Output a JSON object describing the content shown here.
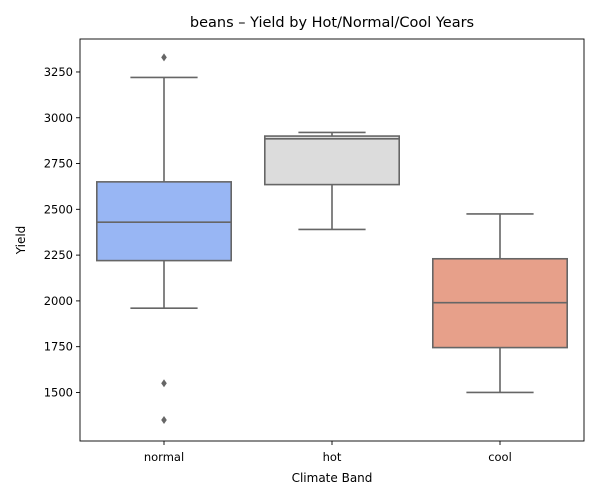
{
  "chart_data": {
    "type": "box",
    "title": "beans – Yield by Hot/Normal/Cool Years",
    "xlabel": "Climate Band",
    "ylabel": "Yield",
    "ylim": [
      1235,
      3430
    ],
    "yticks": [
      1500,
      1750,
      2000,
      2250,
      2500,
      2750,
      3000,
      3250
    ],
    "grid": false,
    "legend": "none",
    "categories": [
      "normal",
      "hot",
      "cool"
    ],
    "boxes": [
      {
        "category": "normal",
        "color": "#98b6f4",
        "whisker_low": 1960,
        "q1": 2220,
        "median": 2430,
        "q3": 2650,
        "whisker_high": 3220,
        "outliers": [
          3330,
          1550,
          1350
        ]
      },
      {
        "category": "hot",
        "color": "#dcdcdc",
        "whisker_low": 2390,
        "q1": 2635,
        "median": 2885,
        "q3": 2900,
        "whisker_high": 2920,
        "outliers": []
      },
      {
        "category": "cool",
        "color": "#e7a08a",
        "whisker_low": 1500,
        "q1": 1745,
        "median": 1990,
        "q3": 2230,
        "whisker_high": 2475,
        "outliers": []
      }
    ]
  }
}
